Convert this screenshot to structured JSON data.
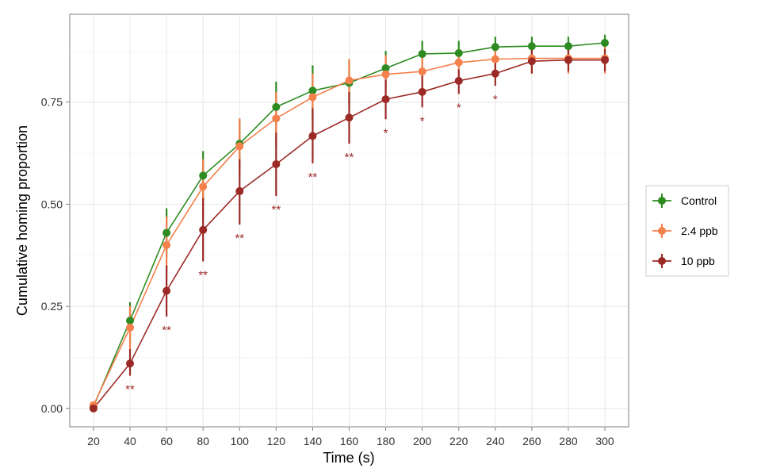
{
  "chart_data": {
    "type": "line",
    "xlabel": "Time (s)",
    "ylabel": "Cumulative homing proportion",
    "x": [
      20,
      40,
      60,
      80,
      100,
      120,
      140,
      160,
      180,
      200,
      220,
      240,
      260,
      280,
      300
    ],
    "x_ticks": [
      "20",
      "40",
      "60",
      "80",
      "100",
      "120",
      "140",
      "160",
      "180",
      "200",
      "220",
      "240",
      "260",
      "280",
      "300"
    ],
    "y_ticks": [
      "0.00",
      "0.25",
      "0.50",
      "0.75"
    ],
    "y_tick_values": [
      0,
      0.25,
      0.5,
      0.75
    ],
    "xlim": [
      7,
      313
    ],
    "ylim": [
      -0.045,
      0.965
    ],
    "grid": true,
    "legend_position": "right",
    "error_bars": true,
    "series": [
      {
        "name": "Control",
        "color": "#2e8b22",
        "values": [
          0.005,
          0.215,
          0.43,
          0.57,
          0.648,
          0.738,
          0.778,
          0.797,
          0.833,
          0.868,
          0.87,
          0.885,
          0.887,
          0.887,
          0.895
        ],
        "err_low": [
          0.0,
          0.16,
          0.37,
          0.51,
          0.59,
          0.675,
          0.71,
          0.74,
          0.79,
          0.835,
          0.845,
          0.86,
          0.86,
          0.86,
          0.87
        ],
        "err_high": [
          0.01,
          0.26,
          0.49,
          0.63,
          0.705,
          0.8,
          0.84,
          0.855,
          0.875,
          0.9,
          0.9,
          0.91,
          0.91,
          0.91,
          0.915
        ]
      },
      {
        "name": "2.4 ppb",
        "color": "#f4804c",
        "values": [
          0.008,
          0.198,
          0.4,
          0.543,
          0.642,
          0.71,
          0.762,
          0.803,
          0.818,
          0.825,
          0.847,
          0.855,
          0.857,
          0.857,
          0.857
        ],
        "err_low": [
          0.0,
          0.14,
          0.33,
          0.47,
          0.57,
          0.64,
          0.7,
          0.75,
          0.77,
          0.785,
          0.81,
          0.82,
          0.82,
          0.82,
          0.82
        ],
        "err_high": [
          0.015,
          0.25,
          0.47,
          0.61,
          0.71,
          0.775,
          0.82,
          0.855,
          0.865,
          0.865,
          0.88,
          0.885,
          0.885,
          0.885,
          0.885
        ]
      },
      {
        "name": "10 ppb",
        "color": "#9b2a26",
        "values": [
          0.0,
          0.11,
          0.288,
          0.437,
          0.532,
          0.598,
          0.667,
          0.712,
          0.757,
          0.775,
          0.802,
          0.82,
          0.85,
          0.853,
          0.853
        ],
        "err_low": [
          0.0,
          0.08,
          0.225,
          0.36,
          0.45,
          0.52,
          0.6,
          0.648,
          0.708,
          0.737,
          0.77,
          0.79,
          0.82,
          0.825,
          0.825
        ],
        "err_high": [
          0.0,
          0.145,
          0.35,
          0.515,
          0.61,
          0.675,
          0.735,
          0.775,
          0.805,
          0.815,
          0.83,
          0.855,
          0.88,
          0.88,
          0.88
        ]
      }
    ],
    "annotations": [
      {
        "x": 40,
        "text": "**"
      },
      {
        "x": 60,
        "text": "**"
      },
      {
        "x": 80,
        "text": "**"
      },
      {
        "x": 100,
        "text": "**"
      },
      {
        "x": 120,
        "text": "**"
      },
      {
        "x": 140,
        "text": "**"
      },
      {
        "x": 160,
        "text": "**"
      },
      {
        "x": 180,
        "text": "*"
      },
      {
        "x": 200,
        "text": "*"
      },
      {
        "x": 220,
        "text": "*"
      },
      {
        "x": 240,
        "text": "*"
      }
    ],
    "annotation_color": "#9b2a26"
  }
}
